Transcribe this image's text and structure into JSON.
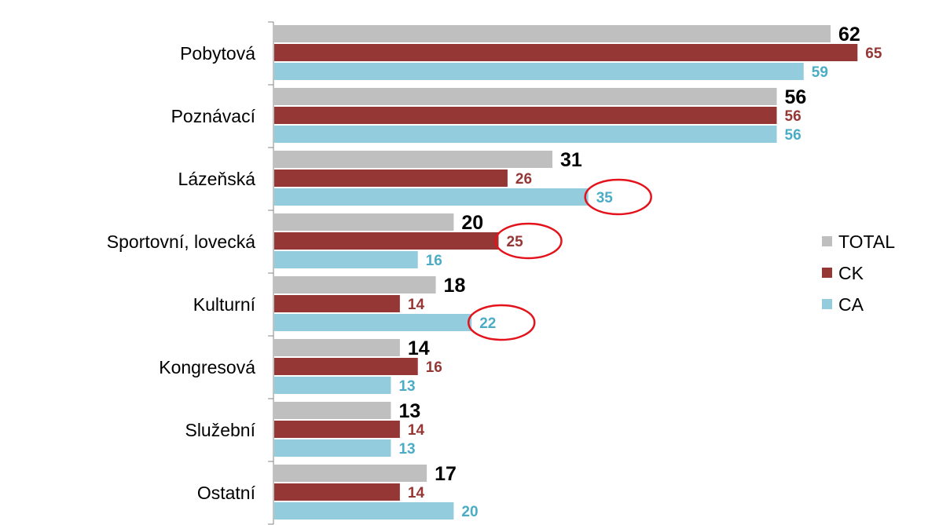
{
  "chart_data": {
    "type": "bar",
    "orientation": "horizontal",
    "categories": [
      "Pobytová",
      "Poznávací",
      "Lázeňská",
      "Sportovní, lovecká",
      "Kulturní",
      "Kongresová",
      "Služební",
      "Ostatní"
    ],
    "series": [
      {
        "name": "TOTAL",
        "color": "#bfbfbf",
        "label_color": "#000000",
        "values": [
          62,
          56,
          31,
          20,
          18,
          14,
          13,
          17
        ]
      },
      {
        "name": "CK",
        "color": "#953735",
        "label_color": "#953735",
        "values": [
          65,
          56,
          26,
          25,
          14,
          16,
          14,
          14
        ]
      },
      {
        "name": "CA",
        "color": "#93cddd",
        "label_color": "#4bacc6",
        "values": [
          59,
          56,
          35,
          16,
          22,
          13,
          13,
          20
        ]
      }
    ],
    "xlim": [
      0,
      70
    ],
    "grid": false,
    "legend_position": "right",
    "highlighted": [
      {
        "category": "Lázeňská",
        "series": "CA"
      },
      {
        "category": "Sportovní, lovecká",
        "series": "CK"
      },
      {
        "category": "Kulturní",
        "series": "CA"
      }
    ],
    "highlight_color": "#e3121b"
  }
}
